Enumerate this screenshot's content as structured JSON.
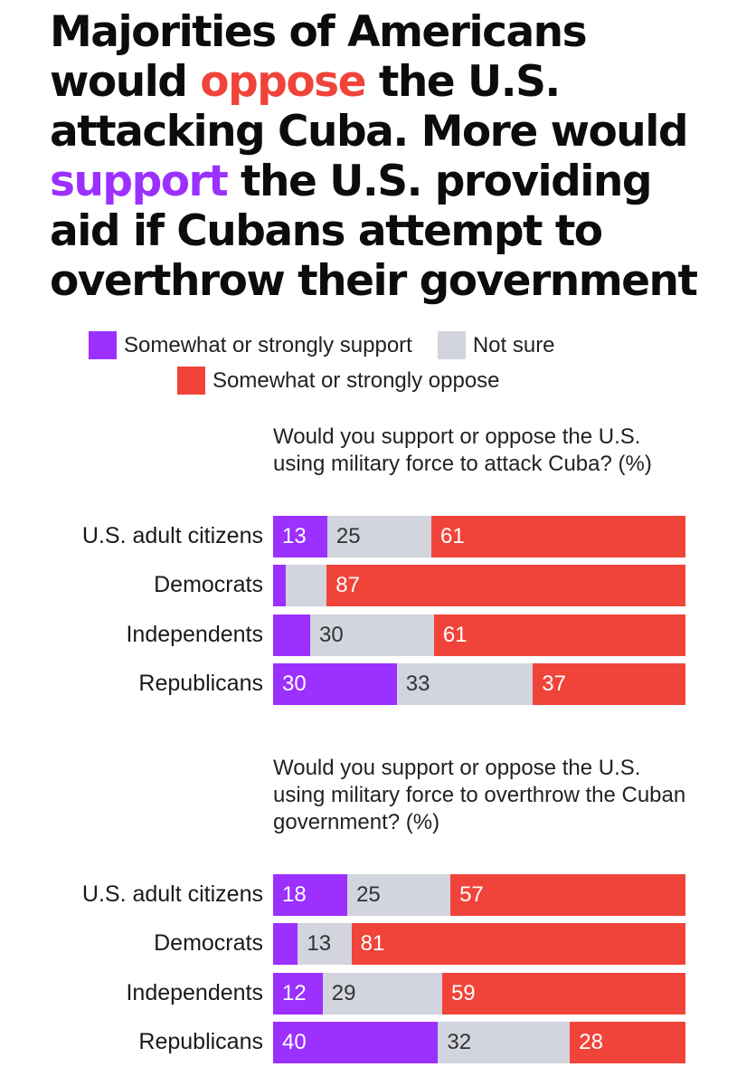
{
  "title": {
    "part1": "Majorities of Americans would ",
    "oppose_word": "oppose",
    "part2": " the U.S. attacking Cuba. More would ",
    "support_word": "support",
    "part3": " the U.S. providing aid if Cubans attempt to overthrow their government"
  },
  "legend": {
    "support": "Somewhat or strongly support",
    "not_sure": "Not sure",
    "oppose": "Somewhat or strongly oppose"
  },
  "colors": {
    "support": "#9b30ff",
    "not_sure": "#d2d4de",
    "oppose": "#f0443a"
  },
  "chart_data": [
    {
      "type": "bar",
      "stacked": true,
      "orientation": "horizontal",
      "title": "Would you support or oppose the U.S. using military force to attack Cuba? (%)",
      "categories": [
        "U.S. adult citizens",
        "Democrats",
        "Independents",
        "Republicans"
      ],
      "series": [
        {
          "name": "Somewhat or strongly support",
          "values": [
            13,
            3,
            9,
            30
          ],
          "labels": [
            "13",
            "",
            "",
            "30"
          ]
        },
        {
          "name": "Not sure",
          "values": [
            25,
            10,
            30,
            33
          ],
          "labels": [
            "25",
            "",
            "30",
            "33"
          ]
        },
        {
          "name": "Somewhat or strongly oppose",
          "values": [
            61,
            87,
            61,
            37
          ],
          "labels": [
            "61",
            "87",
            "61",
            "37"
          ]
        }
      ]
    },
    {
      "type": "bar",
      "stacked": true,
      "orientation": "horizontal",
      "title": "Would you support or oppose the U.S. using military force to overthrow the Cuban government? (%)",
      "categories": [
        "U.S. adult citizens",
        "Democrats",
        "Independents",
        "Republicans"
      ],
      "series": [
        {
          "name": "Somewhat or strongly support",
          "values": [
            18,
            6,
            12,
            40
          ],
          "labels": [
            "18",
            "",
            "12",
            "40"
          ]
        },
        {
          "name": "Not sure",
          "values": [
            25,
            13,
            29,
            32
          ],
          "labels": [
            "25",
            "13",
            "29",
            "32"
          ]
        },
        {
          "name": "Somewhat or strongly oppose",
          "values": [
            57,
            81,
            59,
            28
          ],
          "labels": [
            "57",
            "81",
            "59",
            "28"
          ]
        }
      ]
    }
  ]
}
